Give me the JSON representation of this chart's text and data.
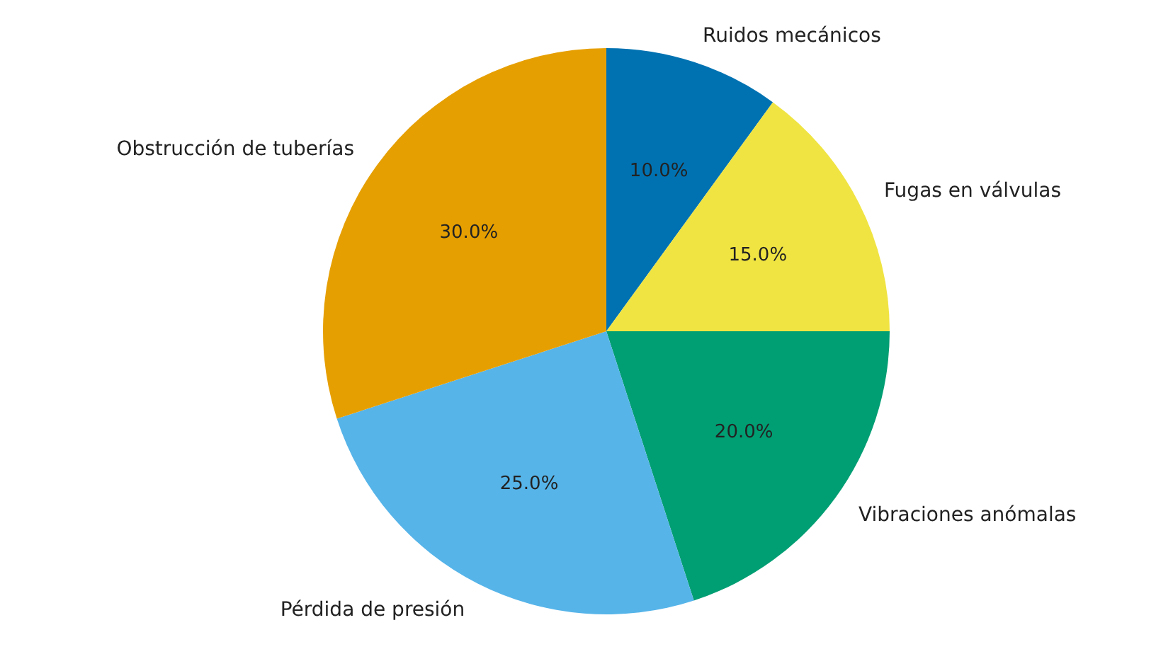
{
  "chart_data": {
    "type": "pie",
    "categories": [
      "Ruidos mecánicos",
      "Fugas en válvulas",
      "Vibraciones anómalas",
      "Pérdida de presión",
      "Obstrucción de tuberías"
    ],
    "values": [
      10,
      15,
      20,
      25,
      30
    ],
    "colors": [
      "#0072b2",
      "#f0e442",
      "#009e73",
      "#56b4e9",
      "#e69f00"
    ],
    "value_labels": [
      "10.0%",
      "15.0%",
      "20.0%",
      "25.0%",
      "30.0%"
    ]
  }
}
